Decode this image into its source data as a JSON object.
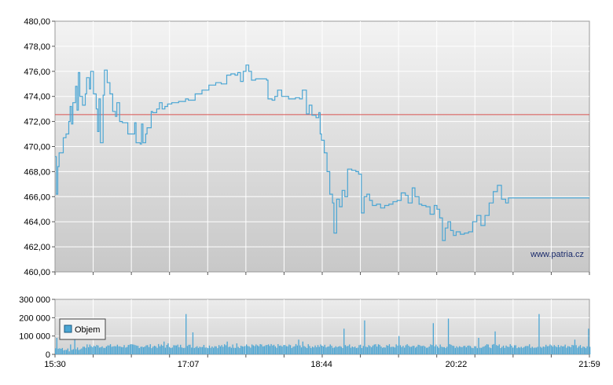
{
  "watermark": "www.patria.cz",
  "chart_data": [
    {
      "type": "line",
      "title": "",
      "xlabel": "",
      "ylabel": "",
      "ylim": [
        460,
        480
      ],
      "yticks": [
        460,
        462,
        464,
        466,
        468,
        470,
        472,
        474,
        476,
        478,
        480
      ],
      "ytick_labels": [
        "460,00",
        "462,00",
        "464,00",
        "466,00",
        "468,00",
        "470,00",
        "472,00",
        "474,00",
        "476,00",
        "478,00",
        "480,00"
      ],
      "grid": true,
      "reference_line": {
        "value": 472.55,
        "color": "#d9534f"
      },
      "series_color": "#4ba6d4",
      "x_range": [
        "15:30",
        "21:59"
      ],
      "points": [
        [
          "15:30",
          469.2
        ],
        [
          "15:31",
          466.2
        ],
        [
          "15:32",
          468.4
        ],
        [
          "15:33",
          469.5
        ],
        [
          "15:35",
          469.5
        ],
        [
          "15:36",
          470.7
        ],
        [
          "15:38",
          471.0
        ],
        [
          "15:40",
          472.0
        ],
        [
          "15:41",
          473.2
        ],
        [
          "15:42",
          471.8
        ],
        [
          "15:43",
          473.5
        ],
        [
          "15:45",
          474.8
        ],
        [
          "15:46",
          472.9
        ],
        [
          "15:47",
          475.9
        ],
        [
          "15:48",
          474.0
        ],
        [
          "15:50",
          473.3
        ],
        [
          "15:52",
          474.2
        ],
        [
          "15:53",
          475.5
        ],
        [
          "15:55",
          474.6
        ],
        [
          "15:56",
          476.0
        ],
        [
          "15:58",
          474.2
        ],
        [
          "16:00",
          473.0
        ],
        [
          "16:01",
          471.2
        ],
        [
          "16:02",
          473.8
        ],
        [
          "16:03",
          470.3
        ],
        [
          "16:05",
          474.1
        ],
        [
          "16:06",
          476.1
        ],
        [
          "16:08",
          475.1
        ],
        [
          "16:10",
          474.2
        ],
        [
          "16:12",
          472.8
        ],
        [
          "16:14",
          472.4
        ],
        [
          "16:15",
          473.5
        ],
        [
          "16:17",
          472.0
        ],
        [
          "16:19",
          471.9
        ],
        [
          "16:22",
          471.9
        ],
        [
          "16:23",
          471.0
        ],
        [
          "16:28",
          471.9
        ],
        [
          "16:29",
          470.3
        ],
        [
          "16:32",
          470.2
        ],
        [
          "16:33",
          471.8
        ],
        [
          "16:34",
          470.3
        ],
        [
          "16:36",
          471.0
        ],
        [
          "16:37",
          471.5
        ],
        [
          "16:40",
          472.8
        ],
        [
          "16:41",
          472.7
        ],
        [
          "16:44",
          473.0
        ],
        [
          "16:46",
          473.5
        ],
        [
          "16:48",
          473.0
        ],
        [
          "16:50",
          473.2
        ],
        [
          "16:52",
          473.4
        ],
        [
          "16:55",
          473.5
        ],
        [
          "17:00",
          473.6
        ],
        [
          "17:05",
          473.8
        ],
        [
          "17:07",
          473.7
        ],
        [
          "17:12",
          474.2
        ],
        [
          "17:17",
          474.5
        ],
        [
          "17:22",
          474.9
        ],
        [
          "17:27",
          475.1
        ],
        [
          "17:31",
          475.0
        ],
        [
          "17:35",
          475.7
        ],
        [
          "17:38",
          475.8
        ],
        [
          "17:41",
          475.7
        ],
        [
          "17:43",
          475.9
        ],
        [
          "17:45",
          475.2
        ],
        [
          "17:47",
          476.0
        ],
        [
          "17:49",
          476.5
        ],
        [
          "17:51",
          476.0
        ],
        [
          "17:53",
          475.3
        ],
        [
          "17:56",
          475.4
        ],
        [
          "18:00",
          475.4
        ],
        [
          "18:04",
          475.3
        ],
        [
          "18:05",
          473.8
        ],
        [
          "18:08",
          473.7
        ],
        [
          "18:10",
          474.0
        ],
        [
          "18:12",
          474.5
        ],
        [
          "18:15",
          474.0
        ],
        [
          "18:20",
          473.8
        ],
        [
          "18:25",
          473.9
        ],
        [
          "18:28",
          473.8
        ],
        [
          "18:30",
          474.5
        ],
        [
          "18:33",
          472.6
        ],
        [
          "18:35",
          473.3
        ],
        [
          "18:37",
          472.5
        ],
        [
          "18:40",
          472.3
        ],
        [
          "18:42",
          472.7
        ],
        [
          "18:43",
          471.0
        ],
        [
          "18:44",
          470.5
        ],
        [
          "18:46",
          469.5
        ],
        [
          "18:48",
          468.0
        ],
        [
          "18:50",
          466.2
        ],
        [
          "18:52",
          465.5
        ],
        [
          "18:53",
          463.1
        ],
        [
          "18:55",
          465.8
        ],
        [
          "18:57",
          465.2
        ],
        [
          "18:59",
          466.5
        ],
        [
          "19:01",
          466.0
        ],
        [
          "19:03",
          468.2
        ],
        [
          "19:06",
          468.1
        ],
        [
          "19:09",
          468.0
        ],
        [
          "19:11",
          467.8
        ],
        [
          "19:13",
          464.7
        ],
        [
          "19:15",
          466.0
        ],
        [
          "19:17",
          466.2
        ],
        [
          "19:19",
          465.7
        ],
        [
          "19:21",
          465.3
        ],
        [
          "19:24",
          465.4
        ],
        [
          "19:27",
          465.1
        ],
        [
          "19:30",
          465.3
        ],
        [
          "19:33",
          465.4
        ],
        [
          "19:36",
          465.6
        ],
        [
          "19:39",
          465.7
        ],
        [
          "19:42",
          466.3
        ],
        [
          "19:45",
          466.1
        ],
        [
          "19:47",
          465.5
        ],
        [
          "19:50",
          466.7
        ],
        [
          "19:52",
          466.0
        ],
        [
          "19:55",
          465.4
        ],
        [
          "19:57",
          465.3
        ],
        [
          "20:00",
          465.2
        ],
        [
          "20:03",
          464.6
        ],
        [
          "20:06",
          465.3
        ],
        [
          "20:08",
          465.0
        ],
        [
          "20:10",
          464.3
        ],
        [
          "20:12",
          462.5
        ],
        [
          "20:14",
          463.5
        ],
        [
          "20:16",
          464.0
        ],
        [
          "20:18",
          463.3
        ],
        [
          "20:20",
          462.9
        ],
        [
          "20:22",
          463.2
        ],
        [
          "20:25",
          463.0
        ],
        [
          "20:28",
          463.1
        ],
        [
          "20:31",
          463.2
        ],
        [
          "20:34",
          464.0
        ],
        [
          "20:37",
          464.5
        ],
        [
          "20:40",
          463.7
        ],
        [
          "20:43",
          464.5
        ],
        [
          "20:46",
          465.5
        ],
        [
          "20:49",
          466.4
        ],
        [
          "20:52",
          466.9
        ],
        [
          "20:55",
          465.8
        ],
        [
          "20:58",
          465.5
        ],
        [
          "21:00",
          465.9
        ],
        [
          "21:05",
          465.9
        ],
        [
          "21:10",
          465.9
        ],
        [
          "21:15",
          465.9
        ],
        [
          "21:20",
          465.9
        ],
        [
          "21:30",
          465.9
        ],
        [
          "21:40",
          465.9
        ],
        [
          "21:50",
          465.9
        ],
        [
          "21:59",
          465.9
        ]
      ]
    },
    {
      "type": "bar",
      "title": "",
      "xlabel": "",
      "ylabel": "",
      "legend": {
        "label": "Objem",
        "placement": "left"
      },
      "ylim": [
        0,
        300000
      ],
      "yticks": [
        0,
        100000,
        200000,
        300000
      ],
      "ytick_labels": [
        "0",
        "100 000",
        "200 000",
        "300 000"
      ],
      "xtick_labels": [
        "15:30",
        "17:07",
        "18:44",
        "20:22",
        "21:59"
      ],
      "grid": true,
      "series_color": "#4ba6d4",
      "base_volume": 45000,
      "spikes": [
        [
          "15:31",
          90000
        ],
        [
          "15:44",
          80000
        ],
        [
          "16:49",
          70000
        ],
        [
          "16:52",
          60000
        ],
        [
          "17:05",
          220000
        ],
        [
          "17:10",
          120000
        ],
        [
          "17:35",
          70000
        ],
        [
          "17:42",
          60000
        ],
        [
          "18:27",
          80000
        ],
        [
          "18:30",
          70000
        ],
        [
          "19:00",
          140000
        ],
        [
          "19:15",
          185000
        ],
        [
          "19:40",
          100000
        ],
        [
          "20:05",
          170000
        ],
        [
          "20:16",
          195000
        ],
        [
          "20:38",
          90000
        ],
        [
          "20:50",
          125000
        ],
        [
          "21:22",
          220000
        ],
        [
          "21:48",
          80000
        ],
        [
          "21:58",
          140000
        ]
      ]
    }
  ]
}
